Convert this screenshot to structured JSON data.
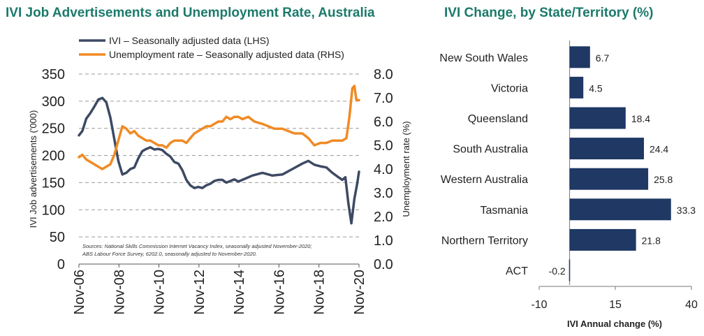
{
  "chart_data": [
    {
      "type": "line",
      "title": "IVI Job Advertisements and Unemployment Rate, Australia",
      "xlabel": "",
      "ylabel_left": "IVI Job advertisements ('000)",
      "ylabel_right": "Unemployment rate (%)",
      "y_left_ticks": [
        "0",
        "50",
        "100",
        "150",
        "200",
        "250",
        "300",
        "350"
      ],
      "y_right_ticks": [
        "0.0",
        "1.0",
        "2.0",
        "3.0",
        "4.0",
        "5.0",
        "6.0",
        "7.0",
        "8.0"
      ],
      "ylim_left": [
        0,
        350
      ],
      "ylim_right": [
        0,
        8
      ],
      "xlim": [
        2006.83,
        2020.83
      ],
      "x_tick_labels": [
        "Nov-06",
        "Nov-08",
        "Nov-10",
        "Nov-12",
        "Nov-14",
        "Nov-16",
        "Nov-18",
        "Nov-20"
      ],
      "x_tick_positions": [
        2006.83,
        2008.83,
        2010.83,
        2012.83,
        2014.83,
        2016.83,
        2018.83,
        2020.83
      ],
      "grid": "horizontal dashed",
      "legend_position": "top",
      "note_line1": "Sources: National Skills Commission Internet Vacancy Index, seasonally adjusted November-2020;",
      "note_line2": "ABS Labour Force Survey, 6202.0, seasonally adjusted to November-2020.",
      "series": [
        {
          "name": "IVI – Seasonally adjusted data (LHS)",
          "axis": "left",
          "color": "#3d4a63",
          "x": [
            2006.83,
            2007.0,
            2007.2,
            2007.4,
            2007.6,
            2007.8,
            2008.0,
            2008.2,
            2008.4,
            2008.6,
            2008.8,
            2009.0,
            2009.2,
            2009.4,
            2009.6,
            2009.8,
            2010.0,
            2010.2,
            2010.4,
            2010.6,
            2010.8,
            2011.0,
            2011.2,
            2011.4,
            2011.6,
            2011.8,
            2012.0,
            2012.2,
            2012.4,
            2012.6,
            2012.8,
            2013.0,
            2013.2,
            2013.4,
            2013.6,
            2013.8,
            2014.0,
            2014.2,
            2014.4,
            2014.6,
            2014.8,
            2015.0,
            2015.5,
            2016.0,
            2016.5,
            2017.0,
            2017.5,
            2018.0,
            2018.3,
            2018.6,
            2018.9,
            2019.2,
            2019.5,
            2019.8,
            2020.0,
            2020.15,
            2020.3,
            2020.45,
            2020.6,
            2020.75,
            2020.83
          ],
          "values": [
            237,
            245,
            268,
            278,
            290,
            303,
            306,
            298,
            270,
            230,
            190,
            165,
            168,
            175,
            178,
            195,
            208,
            212,
            215,
            211,
            212,
            210,
            203,
            198,
            188,
            185,
            173,
            155,
            145,
            140,
            142,
            140,
            145,
            148,
            153,
            155,
            155,
            150,
            153,
            156,
            152,
            155,
            163,
            168,
            163,
            165,
            175,
            185,
            190,
            183,
            180,
            178,
            168,
            160,
            155,
            160,
            112,
            75,
            120,
            150,
            170
          ]
        },
        {
          "name": "Unemployment rate – Seasonally adjusted data (RHS)",
          "axis": "right",
          "color": "#f08a24",
          "x": [
            2006.83,
            2007.0,
            2007.2,
            2007.4,
            2007.6,
            2007.8,
            2008.0,
            2008.2,
            2008.4,
            2008.6,
            2008.8,
            2009.0,
            2009.2,
            2009.4,
            2009.6,
            2009.8,
            2010.0,
            2010.2,
            2010.4,
            2010.6,
            2010.8,
            2011.0,
            2011.2,
            2011.4,
            2011.6,
            2011.8,
            2012.0,
            2012.2,
            2012.4,
            2012.6,
            2012.8,
            2013.0,
            2013.2,
            2013.4,
            2013.6,
            2013.8,
            2014.0,
            2014.2,
            2014.4,
            2014.6,
            2014.8,
            2015.0,
            2015.3,
            2015.6,
            2016.0,
            2016.3,
            2016.6,
            2017.0,
            2017.3,
            2017.6,
            2018.0,
            2018.3,
            2018.6,
            2018.9,
            2019.2,
            2019.5,
            2019.8,
            2020.0,
            2020.2,
            2020.35,
            2020.5,
            2020.6,
            2020.7,
            2020.83
          ],
          "values": [
            4.5,
            4.6,
            4.4,
            4.3,
            4.2,
            4.1,
            4.0,
            4.1,
            4.2,
            4.6,
            5.2,
            5.8,
            5.7,
            5.5,
            5.6,
            5.4,
            5.3,
            5.2,
            5.2,
            5.1,
            5.0,
            5.0,
            4.9,
            5.1,
            5.2,
            5.2,
            5.2,
            5.1,
            5.3,
            5.5,
            5.6,
            5.7,
            5.8,
            5.8,
            5.9,
            6.0,
            6.0,
            6.2,
            6.1,
            6.2,
            6.2,
            6.1,
            6.2,
            6.0,
            5.9,
            5.8,
            5.7,
            5.7,
            5.6,
            5.5,
            5.5,
            5.3,
            5.0,
            5.1,
            5.1,
            5.2,
            5.2,
            5.2,
            5.3,
            6.2,
            7.4,
            7.5,
            6.9,
            6.9
          ]
        }
      ]
    },
    {
      "type": "bar",
      "orientation": "horizontal",
      "title": "IVI Change, by State/Territory (%)",
      "xlabel": "IVI Annual change (%)",
      "ylabel": "",
      "xlim": [
        -10,
        40
      ],
      "x_ticks": [
        -10,
        15,
        40
      ],
      "x_tick_labels": [
        "-10",
        "15",
        "40"
      ],
      "categories": [
        "New South Wales",
        "Victoria",
        "Queensland",
        "South Australia",
        "Western Australia",
        "Tasmania",
        "Northern Territory",
        "ACT"
      ],
      "values": [
        6.7,
        4.5,
        18.4,
        24.4,
        25.8,
        33.3,
        21.8,
        -0.2
      ],
      "value_labels": [
        "6.7",
        "4.5",
        "18.4",
        "24.4",
        "25.8",
        "33.3",
        "21.8",
        "-0.2"
      ],
      "color": "#1f3864"
    }
  ]
}
